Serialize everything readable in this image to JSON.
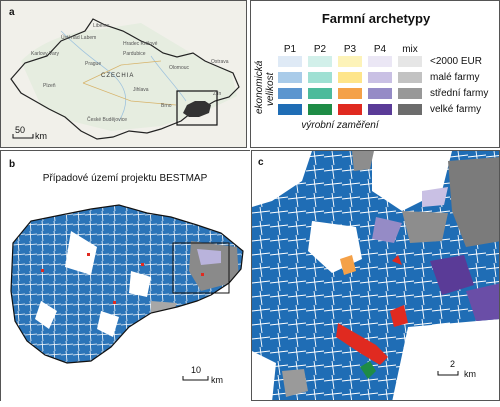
{
  "panels": {
    "a": {
      "label": "a"
    },
    "b": {
      "label": "b",
      "title": "Případové území projektu BESTMAP"
    },
    "c": {
      "label": "c"
    }
  },
  "overview_map": {
    "country_label": "CZECHIA",
    "towns": [
      "Liberec",
      "Ústí nad Labem",
      "Hradec Králové",
      "Karlovy Vary",
      "Pardubice",
      "Olomouc",
      "Ostrava",
      "Prague",
      "Jihlava",
      "Plzeň",
      "Zlín",
      "Brno",
      "České Budějovice"
    ],
    "scale_bar": {
      "value": "50",
      "unit": "km"
    }
  },
  "legend": {
    "title": "Farmní archetypy",
    "columns": [
      "P1",
      "P2",
      "P3",
      "P4",
      "mix"
    ],
    "rows": [
      "<2000 EUR",
      "malé farmy",
      "střední farmy",
      "velké farmy"
    ],
    "y_axis_label_line1": "ekonomická",
    "y_axis_label_line2": "velikost",
    "x_axis_label": "výrobní zaměření",
    "colors": [
      [
        "#dfeaf6",
        "#d2f0ea",
        "#fdf3b9",
        "#ebe7f5",
        "#e6e6e6"
      ],
      [
        "#a9cbe9",
        "#9fe0d3",
        "#fee58a",
        "#c9c0e4",
        "#c2c2c2"
      ],
      [
        "#5b95cf",
        "#4dbb9b",
        "#f4a148",
        "#958bc6",
        "#989898"
      ],
      [
        "#1f6db5",
        "#1e8c46",
        "#e02a20",
        "#5a3b97",
        "#6c6c6c"
      ]
    ]
  },
  "study_area_map": {
    "scale_bar": {
      "value": "10",
      "unit": "km"
    }
  },
  "detail_map": {
    "scale_bar": {
      "value": "2",
      "unit": "km"
    }
  }
}
